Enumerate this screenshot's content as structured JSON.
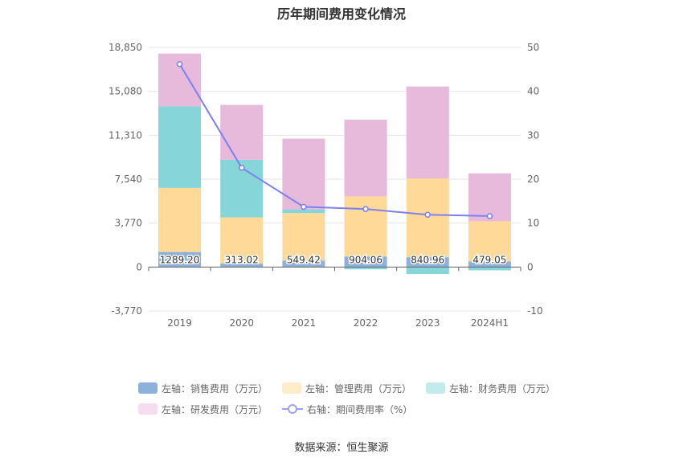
{
  "chart_data": {
    "type": "bar",
    "title": "历年期间费用变化情况",
    "categories": [
      "2019",
      "2020",
      "2021",
      "2022",
      "2023",
      "2024H1"
    ],
    "left_axis": {
      "ylim": [
        -3770,
        18850
      ],
      "ticks": [
        "18,850",
        "15,080",
        "11,310",
        "7,540",
        "3,770",
        "0",
        "-3,770"
      ]
    },
    "right_axis": {
      "ylim": [
        -10,
        50
      ],
      "ticks": [
        "50",
        "40",
        "30",
        "20",
        "10",
        "0",
        "-10"
      ]
    },
    "series": [
      {
        "name": "左轴：销售费用（万元）",
        "kind": "bar",
        "color": "#8eb0dc",
        "values": [
          1289.2,
          313.02,
          549.42,
          904.06,
          840.96,
          479.05
        ],
        "labels": [
          "1289.20",
          "313.02",
          "549.42",
          "904.06",
          "840.96",
          "479.05"
        ]
      },
      {
        "name": "左轴：管理费用（万元）",
        "kind": "bar",
        "color": "#fed998",
        "values": [
          5500,
          3950,
          4080,
          5160,
          6760,
          3450
        ]
      },
      {
        "name": "左轴：财务费用（万元）",
        "kind": "bar",
        "color": "#86d5d9",
        "values": [
          7000,
          4950,
          320,
          -200,
          -600,
          -280
        ]
      },
      {
        "name": "左轴：研发费用（万元）",
        "kind": "bar",
        "color": "#e7b9da",
        "values": [
          4530,
          4700,
          6070,
          6590,
          7890,
          4110
        ]
      },
      {
        "name": "右轴：期间费用率（%）",
        "kind": "line",
        "color": "#7e80f0",
        "values": [
          46.2,
          22.6,
          13.7,
          13.2,
          11.9,
          11.6
        ]
      }
    ],
    "grid": true,
    "legend_position": "bottom"
  },
  "source": "数据来源：恒生聚源"
}
